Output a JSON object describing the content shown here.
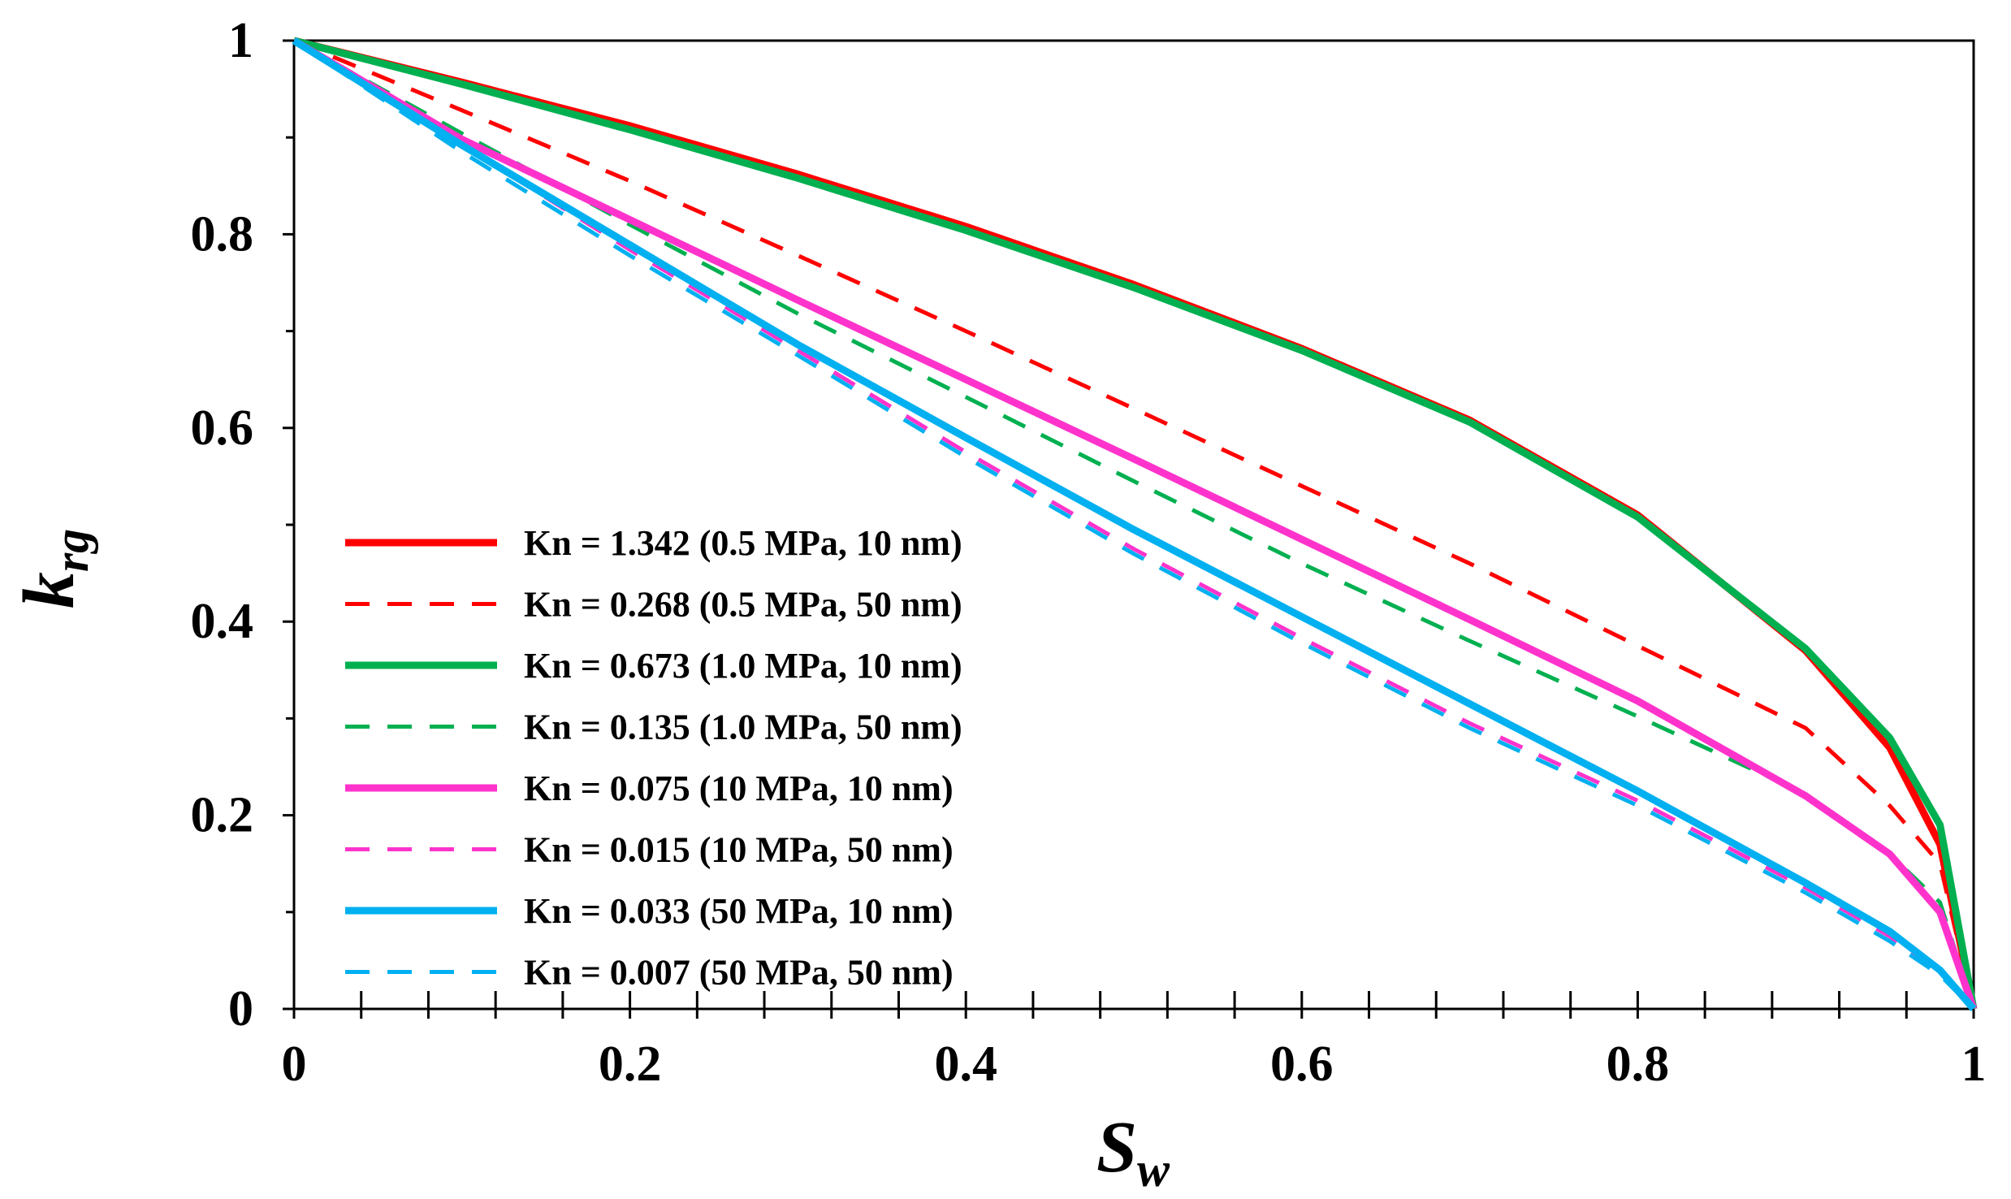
{
  "chart_data": {
    "type": "line",
    "title": "",
    "xlabel": "S",
    "xlabel_sub": "w",
    "ylabel": "k",
    "ylabel_sub": "rg",
    "xlim": [
      0,
      1
    ],
    "ylim": [
      0,
      1
    ],
    "x_ticks": [
      "0",
      "0.2",
      "0.4",
      "0.6",
      "0.8",
      "1"
    ],
    "y_ticks": [
      "0",
      "0.2",
      "0.4",
      "0.6",
      "0.8",
      "1"
    ],
    "grid": false,
    "legend_position": "bottom-left",
    "x": [
      0,
      0.1,
      0.2,
      0.3,
      0.4,
      0.5,
      0.6,
      0.7,
      0.8,
      0.9,
      0.95,
      0.98,
      1.0
    ],
    "series": [
      {
        "name": "Kn = 1.342 (0.5 MPa, 10 nm)",
        "color": "#ff0000",
        "style": "solid",
        "values": [
          1.0,
          0.957,
          0.912,
          0.862,
          0.808,
          0.748,
          0.682,
          0.608,
          0.51,
          0.37,
          0.27,
          0.17,
          0.0
        ]
      },
      {
        "name": "Kn = 0.268 (0.5 MPa, 50 nm)",
        "color": "#ff0000",
        "style": "dashed",
        "values": [
          1.0,
          0.928,
          0.855,
          0.778,
          0.7,
          0.62,
          0.54,
          0.46,
          0.375,
          0.29,
          0.21,
          0.15,
          0.0
        ]
      },
      {
        "name": "Kn = 0.673 (1.0 MPa, 10 nm)",
        "color": "#00b050",
        "style": "solid",
        "values": [
          1.0,
          0.955,
          0.908,
          0.858,
          0.804,
          0.745,
          0.68,
          0.606,
          0.508,
          0.372,
          0.28,
          0.19,
          0.0
        ]
      },
      {
        "name": "Kn = 0.135 (1.0 MPa, 50 nm)",
        "color": "#00b050",
        "style": "dashed",
        "values": [
          1.0,
          0.904,
          0.81,
          0.718,
          0.632,
          0.545,
          0.46,
          0.38,
          0.302,
          0.222,
          0.16,
          0.11,
          0.0
        ]
      },
      {
        "name": "Kn = 0.075 (10 MPa, 10 nm)",
        "color": "#ff33cc",
        "style": "solid",
        "values": [
          1.0,
          0.898,
          0.815,
          0.732,
          0.65,
          0.568,
          0.485,
          0.402,
          0.318,
          0.22,
          0.16,
          0.1,
          0.0
        ]
      },
      {
        "name": "Kn = 0.015 (10 MPa, 50 nm)",
        "color": "#ff33cc",
        "style": "dashed",
        "values": [
          1.0,
          0.892,
          0.784,
          0.68,
          0.575,
          0.475,
          0.383,
          0.295,
          0.215,
          0.125,
          0.075,
          0.04,
          0.0
        ]
      },
      {
        "name": "Kn = 0.033 (50 MPa, 10 nm)",
        "color": "#00b0f0",
        "style": "solid",
        "values": [
          1.0,
          0.892,
          0.789,
          0.686,
          0.59,
          0.495,
          0.405,
          0.315,
          0.225,
          0.13,
          0.08,
          0.04,
          0.0
        ]
      },
      {
        "name": "Kn = 0.007 (50 MPa, 50 nm)",
        "color": "#00b0f0",
        "style": "dashed",
        "values": [
          1.0,
          0.885,
          0.778,
          0.675,
          0.57,
          0.47,
          0.378,
          0.29,
          0.21,
          0.12,
          0.07,
          0.035,
          0.0
        ]
      }
    ]
  }
}
